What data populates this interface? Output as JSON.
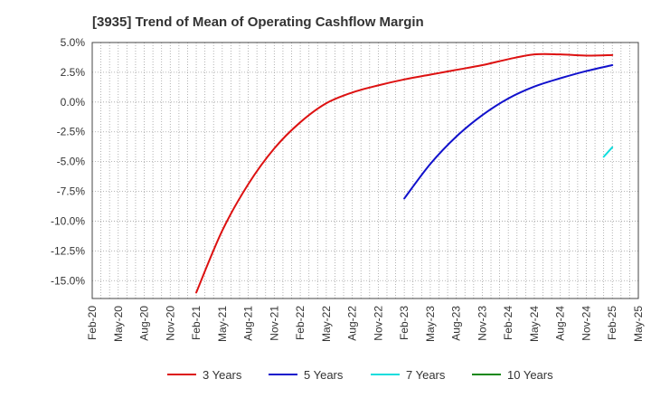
{
  "chart_data": {
    "type": "line",
    "title": "[3935]  Trend of Mean of Operating Cashflow Margin",
    "xlabel": "",
    "ylabel": "",
    "ylim": [
      -16.5,
      5.0
    ],
    "y_ticks": [
      5.0,
      2.5,
      0.0,
      -2.5,
      -5.0,
      -7.5,
      -10.0,
      -12.5,
      -15.0
    ],
    "y_tick_labels": [
      "5.0%",
      "2.5%",
      "0.0%",
      "-2.5%",
      "-5.0%",
      "-7.5%",
      "-10.0%",
      "-12.5%",
      "-15.0%"
    ],
    "x_tick_labels": [
      "Feb-20",
      "May-20",
      "Aug-20",
      "Nov-20",
      "Feb-21",
      "May-21",
      "Aug-21",
      "Nov-21",
      "Feb-22",
      "May-22",
      "Aug-22",
      "Nov-22",
      "Feb-23",
      "May-23",
      "Aug-23",
      "Nov-23",
      "Feb-24",
      "May-24",
      "Aug-24",
      "Nov-24",
      "Feb-25",
      "May-25"
    ],
    "grid": true,
    "legend_position": "bottom",
    "series": [
      {
        "name": "3 Years",
        "color": "#dd1111",
        "points": [
          [
            "Feb-21",
            -16.0
          ],
          [
            "May-21",
            -10.8
          ],
          [
            "Aug-21",
            -6.9
          ],
          [
            "Nov-21",
            -3.9
          ],
          [
            "Feb-22",
            -1.7
          ],
          [
            "May-22",
            -0.1
          ],
          [
            "Aug-22",
            0.8
          ],
          [
            "Nov-22",
            1.4
          ],
          [
            "Feb-23",
            1.9
          ],
          [
            "May-23",
            2.3
          ],
          [
            "Aug-23",
            2.7
          ],
          [
            "Nov-23",
            3.1
          ],
          [
            "Feb-24",
            3.6
          ],
          [
            "May-24",
            4.0
          ],
          [
            "Aug-24",
            4.0
          ],
          [
            "Nov-24",
            3.9
          ],
          [
            "Feb-25",
            3.95
          ]
        ]
      },
      {
        "name": "5 Years",
        "color": "#1111cc",
        "points": [
          [
            "Feb-23",
            -8.1
          ],
          [
            "May-23",
            -5.2
          ],
          [
            "Aug-23",
            -2.9
          ],
          [
            "Nov-23",
            -1.1
          ],
          [
            "Feb-24",
            0.3
          ],
          [
            "May-24",
            1.3
          ],
          [
            "Aug-24",
            2.0
          ],
          [
            "Nov-24",
            2.6
          ],
          [
            "Feb-25",
            3.1
          ]
        ]
      },
      {
        "name": "7 Years",
        "color": "#11dddd",
        "points": [
          [
            "Jan-25",
            -4.6
          ],
          [
            "Feb-25",
            -3.8
          ]
        ]
      },
      {
        "name": "10 Years",
        "color": "#118811",
        "points": []
      }
    ]
  }
}
